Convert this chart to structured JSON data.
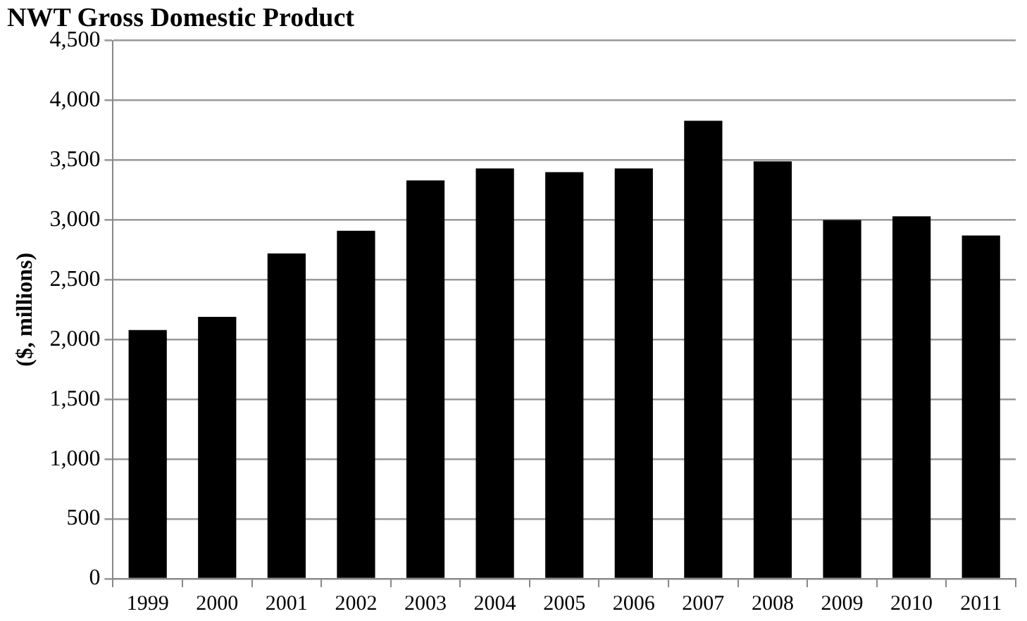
{
  "chart_data": {
    "type": "bar",
    "title": "NWT Gross Domestic Product",
    "ylabel": "($, millions)",
    "categories": [
      "1999",
      "2000",
      "2001",
      "2002",
      "2003",
      "2004",
      "2005",
      "2006",
      "2007",
      "2008",
      "2009",
      "2010",
      "2011"
    ],
    "values": [
      2080,
      2190,
      2720,
      2910,
      3330,
      3430,
      3400,
      3430,
      3830,
      3490,
      3000,
      3030,
      2870
    ],
    "color": "#000000",
    "ylim": [
      0,
      4500
    ],
    "yticks": [
      0,
      500,
      {
        "value": 1000,
        "label": "1,000"
      },
      {
        "value": 1500,
        "label": "1,500"
      },
      {
        "value": 2000,
        "label": "2,000"
      },
      {
        "value": 2500,
        "label": "2,500"
      },
      {
        "value": 3000,
        "label": "3,000"
      },
      {
        "value": 3500,
        "label": "3,500"
      },
      {
        "value": 4000,
        "label": "4,000"
      },
      {
        "value": 4500,
        "label": "4,500"
      }
    ],
    "grid": "y"
  }
}
